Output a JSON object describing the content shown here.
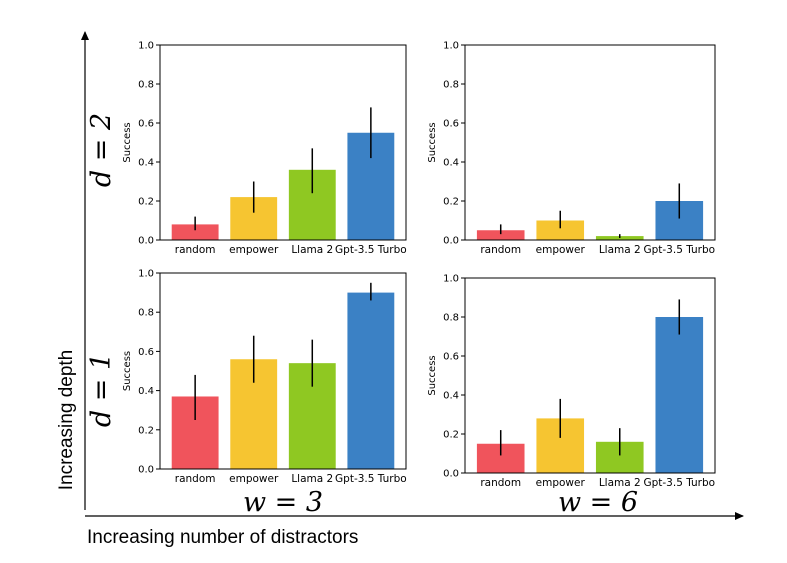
{
  "figure": {
    "y_arrow_label": "Increasing depth",
    "x_arrow_label": "Increasing number of distractors",
    "row_labels": [
      "d = 2",
      "d = 1"
    ],
    "col_labels": [
      "w = 3",
      "w = 6"
    ]
  },
  "colors": {
    "random": "#f0545c",
    "empower": "#f6c531",
    "llama": "#8fc822",
    "gpt": "#3b81c5",
    "error_bar": "#000000",
    "axis": "#000000"
  },
  "chart_data": [
    {
      "type": "bar",
      "panel": "d=2, w=3",
      "categories": [
        "random",
        "empower",
        "Llama 2",
        "Gpt-3.5 Turbo"
      ],
      "values": [
        0.08,
        0.22,
        0.36,
        0.55
      ],
      "error_low": [
        0.05,
        0.14,
        0.24,
        0.42
      ],
      "error_high": [
        0.12,
        0.3,
        0.47,
        0.68
      ],
      "ylabel": "Success",
      "ylim": [
        0,
        1.0
      ],
      "yticks": [
        "0.0",
        "0.2",
        "0.4",
        "0.6",
        "0.8",
        "1.0"
      ]
    },
    {
      "type": "bar",
      "panel": "d=2, w=6",
      "categories": [
        "random",
        "empower",
        "Llama 2",
        "Gpt-3.5 Turbo"
      ],
      "values": [
        0.05,
        0.1,
        0.02,
        0.2
      ],
      "error_low": [
        0.03,
        0.06,
        0.01,
        0.11
      ],
      "error_high": [
        0.08,
        0.15,
        0.03,
        0.29
      ],
      "ylabel": "Success",
      "ylim": [
        0,
        1.0
      ],
      "yticks": [
        "0.0",
        "0.2",
        "0.4",
        "0.6",
        "0.8",
        "1.0"
      ]
    },
    {
      "type": "bar",
      "panel": "d=1, w=3",
      "categories": [
        "random",
        "empower",
        "Llama 2",
        "Gpt-3.5 Turbo"
      ],
      "values": [
        0.37,
        0.56,
        0.54,
        0.9
      ],
      "error_low": [
        0.25,
        0.44,
        0.42,
        0.86
      ],
      "error_high": [
        0.48,
        0.68,
        0.66,
        0.95
      ],
      "ylabel": "Success",
      "ylim": [
        0,
        1.0
      ],
      "yticks": [
        "0.0",
        "0.2",
        "0.4",
        "0.6",
        "0.8",
        "1.0"
      ]
    },
    {
      "type": "bar",
      "panel": "d=1, w=6",
      "categories": [
        "random",
        "empower",
        "Llama 2",
        "Gpt-3.5 Turbo"
      ],
      "values": [
        0.15,
        0.28,
        0.16,
        0.8
      ],
      "error_low": [
        0.09,
        0.18,
        0.09,
        0.71
      ],
      "error_high": [
        0.22,
        0.38,
        0.23,
        0.89
      ],
      "ylabel": "Success",
      "ylim": [
        0,
        1.0
      ],
      "yticks": [
        "0.0",
        "0.2",
        "0.4",
        "0.6",
        "0.8",
        "1.0"
      ]
    }
  ]
}
